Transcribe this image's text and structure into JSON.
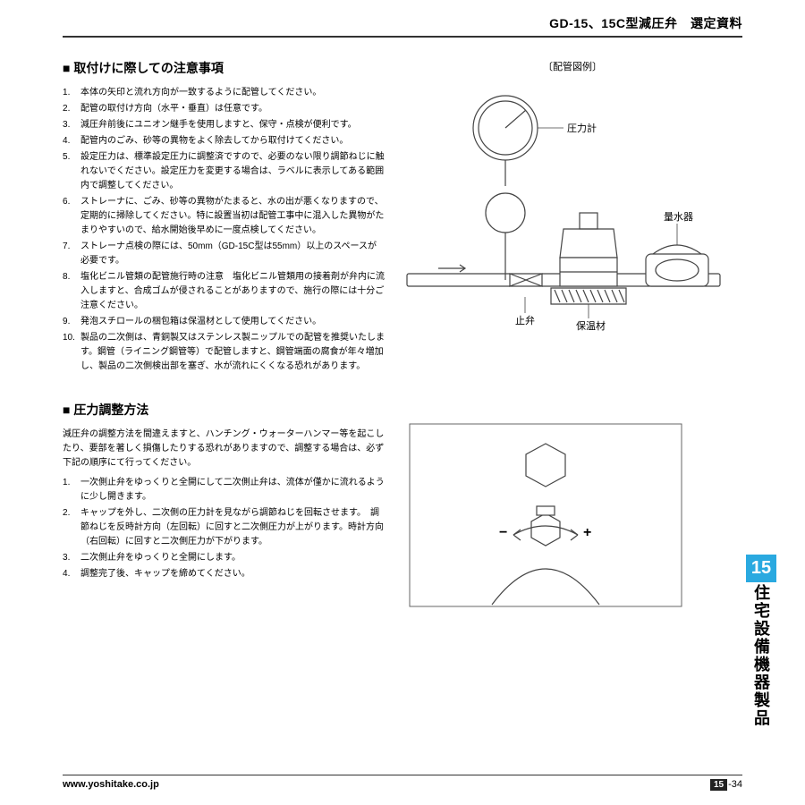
{
  "header": {
    "title": "GD-15、15C型減圧弁　選定資料"
  },
  "section1": {
    "heading": "■ 取付けに際しての注意事項",
    "items": [
      "本体の矢印と流れ方向が一致するように配管してください。",
      "配管の取付け方向（水平・垂直）は任意です。",
      "減圧弁前後にユニオン継手を使用しますと、保守・点検が便利です。",
      "配管内のごみ、砂等の異物をよく除去してから取付けてください。",
      "設定圧力は、標準設定圧力に調整済ですので、必要のない限り調節ねじに触れないでください。設定圧力を変更する場合は、ラベルに表示してある範囲内で調整してください。",
      "ストレーナに、ごみ、砂等の異物がたまると、水の出が悪くなりますので、定期的に掃除してください。特に設置当初は配管工事中に混入した異物がたまりやすいので、給水開始後早めに一度点検してください。",
      "ストレーナ点検の際には、50mm（GD-15C型は55mm）以上のスペースが必要です。",
      "塩化ビニル管類の配管施行時の注意　塩化ビニル管類用の接着剤が弁内に流入しますと、合成ゴムが侵されることがありますので、施行の際には十分ご注意ください。",
      "発泡スチロールの梱包箱は保温材として使用してください。",
      "製品の二次側は、青銅製又はステンレス製ニップルでの配管を推奨いたします。鋼管（ライニング鋼管等）で配管しますと、鋼管端面の腐食が年々増加し、製品の二次側検出部を塞ぎ、水が流れにくくなる恐れがあります。"
    ]
  },
  "diagram1": {
    "caption": "〔配管図例〕",
    "labels": {
      "gauge": "圧力計",
      "meter": "量水器",
      "stop": "止弁",
      "insul": "保温材"
    }
  },
  "section2": {
    "heading": "■ 圧力調整方法",
    "intro": "減圧弁の調整方法を間違えますと、ハンチング・ウォーターハンマー等を起こしたり、要部を著しく損傷したりする恐れがありますので、調整する場合は、必ず下記の順序にて行ってください。",
    "items": [
      "一次側止弁をゆっくりと全開にして二次側止弁は、流体が僅かに流れるように少し開きます。",
      "キャップを外し、二次側の圧力計を見ながら調節ねじを回転させます。　調節ねじを反時計方向（左回転）に回すと二次側圧力が上がります。時計方向（右回転）に回すと二次側圧力が下がります。",
      "二次側止弁をゆっくりと全開にします。",
      "調整完了後、キャップを締めてください。"
    ]
  },
  "sidebar": {
    "num": "15",
    "label": "住宅設備機器製品"
  },
  "footer": {
    "url": "www.yoshitake.co.jp",
    "pg_section": "15",
    "pg_num": "-34"
  }
}
